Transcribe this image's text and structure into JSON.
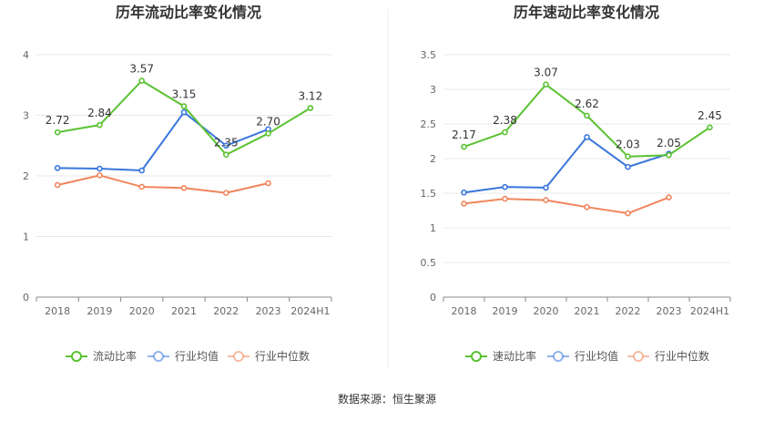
{
  "colors": {
    "main": "#5ac232",
    "avg": "#3a76dc",
    "median": "#f0865e",
    "grid": "#e8e8e8",
    "axis": "#888888"
  },
  "chart_data": [
    {
      "type": "line",
      "title": "历年流动比率变化情况",
      "categories": [
        "2018",
        "2019",
        "2020",
        "2021",
        "2022",
        "2023",
        "2024H1"
      ],
      "ylim": [
        0,
        4
      ],
      "yticks": [
        "0",
        "1",
        "2",
        "3",
        "4"
      ],
      "series": [
        {
          "name": "流动比率",
          "key": "main",
          "values": [
            2.72,
            2.84,
            3.57,
            3.15,
            2.35,
            2.7,
            3.12
          ],
          "labels": [
            "2.72",
            "2.84",
            "3.57",
            "3.15",
            "2.35",
            "2.70",
            "3.12"
          ]
        },
        {
          "name": "行业均值",
          "key": "avg",
          "values": [
            2.13,
            2.12,
            2.09,
            3.05,
            2.5,
            2.77,
            null
          ]
        },
        {
          "name": "行业中位数",
          "key": "median",
          "values": [
            1.85,
            2.01,
            1.82,
            1.8,
            1.72,
            1.88,
            null
          ]
        }
      ]
    },
    {
      "type": "line",
      "title": "历年速动比率变化情况",
      "categories": [
        "2018",
        "2019",
        "2020",
        "2021",
        "2022",
        "2023",
        "2024H1"
      ],
      "ylim": [
        0,
        3.5
      ],
      "yticks": [
        "0",
        "0.5",
        "1",
        "1.5",
        "2",
        "2.5",
        "3",
        "3.5"
      ],
      "series": [
        {
          "name": "速动比率",
          "key": "main",
          "values": [
            2.17,
            2.38,
            3.07,
            2.62,
            2.03,
            2.05,
            2.45
          ],
          "labels": [
            "2.17",
            "2.38",
            "3.07",
            "2.62",
            "2.03",
            "2.05",
            "2.45"
          ]
        },
        {
          "name": "行业均值",
          "key": "avg",
          "values": [
            1.51,
            1.59,
            1.58,
            2.31,
            1.88,
            2.07,
            null
          ]
        },
        {
          "name": "行业中位数",
          "key": "median",
          "values": [
            1.35,
            1.42,
            1.4,
            1.3,
            1.21,
            1.44,
            null
          ]
        }
      ]
    }
  ],
  "source": "数据来源：恒生聚源"
}
